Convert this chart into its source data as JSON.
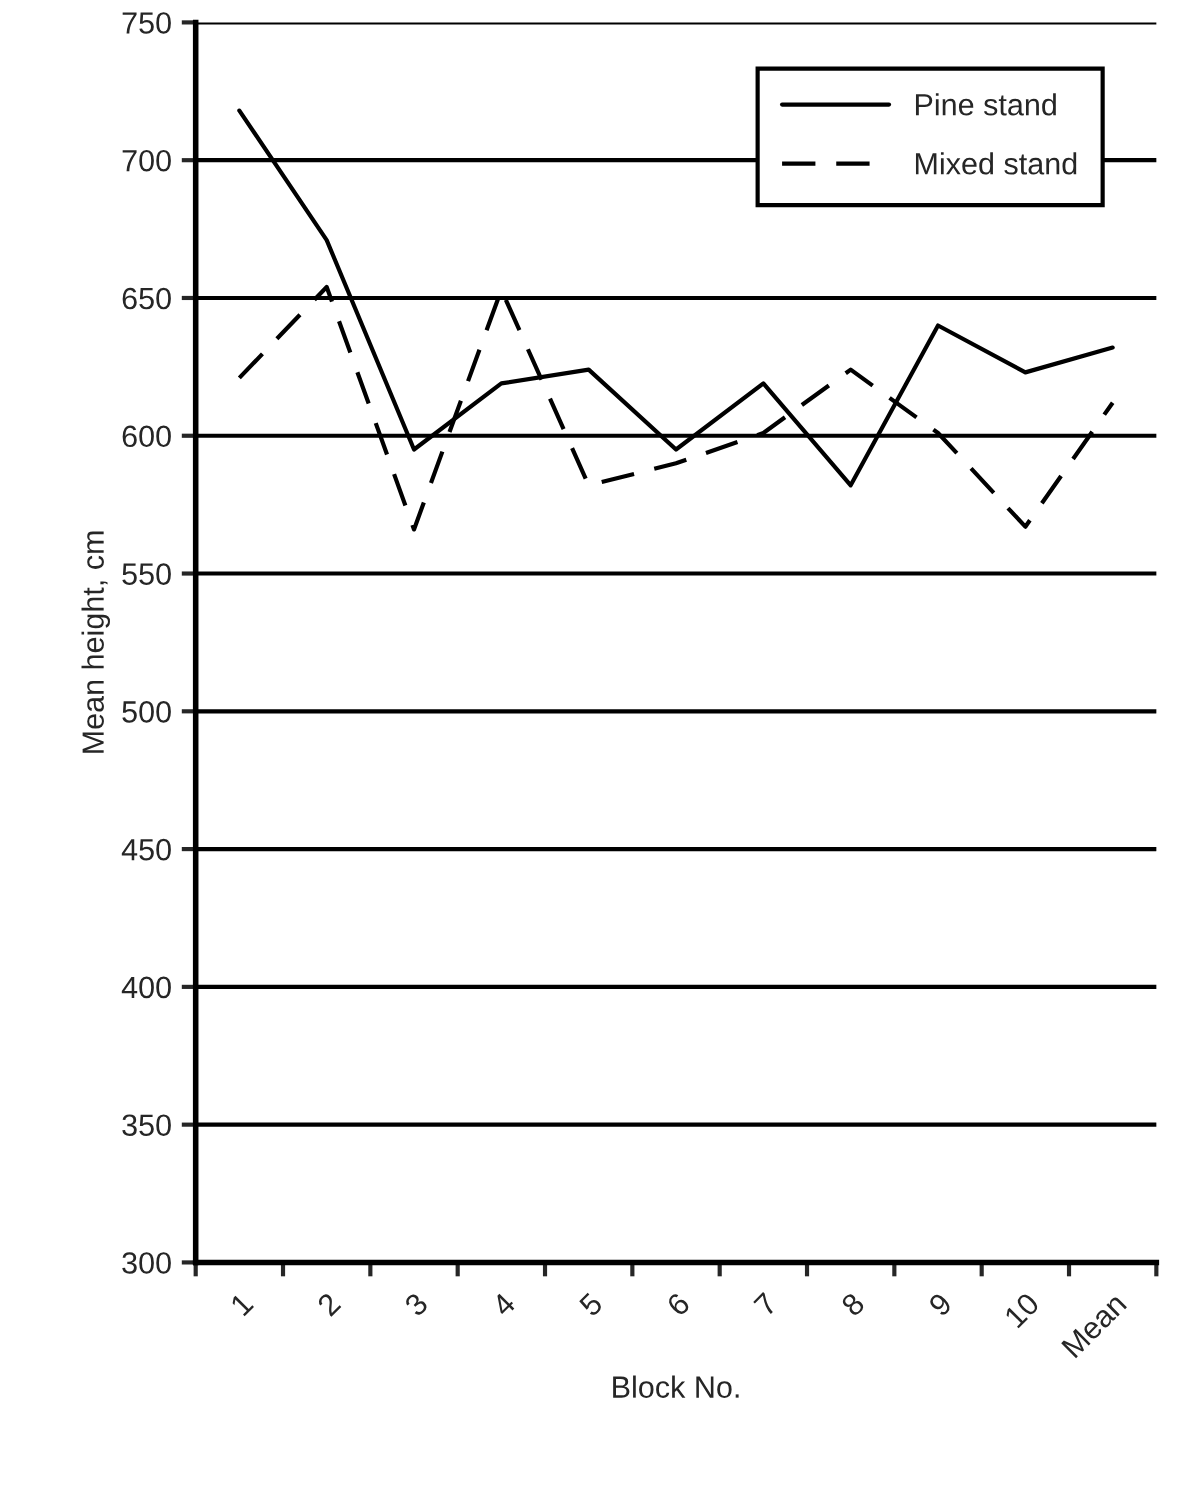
{
  "chart_data": {
    "type": "line",
    "xlabel": "Block No.",
    "ylabel": "Mean height, cm",
    "categories": [
      "1",
      "2",
      "3",
      "4",
      "5",
      "6",
      "7",
      "8",
      "9",
      "10",
      "Mean"
    ],
    "series": [
      {
        "name": "Pine stand",
        "color": "#000000",
        "line_style": "solid",
        "values": [
          718,
          671,
          595,
          619,
          624,
          595,
          619,
          582,
          640,
          623,
          632
        ]
      },
      {
        "name": "Mixed stand",
        "color": "#000000",
        "line_style": "dashed",
        "values": [
          621,
          654,
          566,
          653,
          582,
          590,
          601,
          624,
          601,
          567,
          612
        ]
      }
    ],
    "ylim": [
      300,
      750
    ],
    "yticks": [
      300,
      350,
      400,
      450,
      500,
      550,
      600,
      650,
      700,
      750
    ],
    "grid": "y",
    "legend": "top right",
    "marker": "none"
  }
}
